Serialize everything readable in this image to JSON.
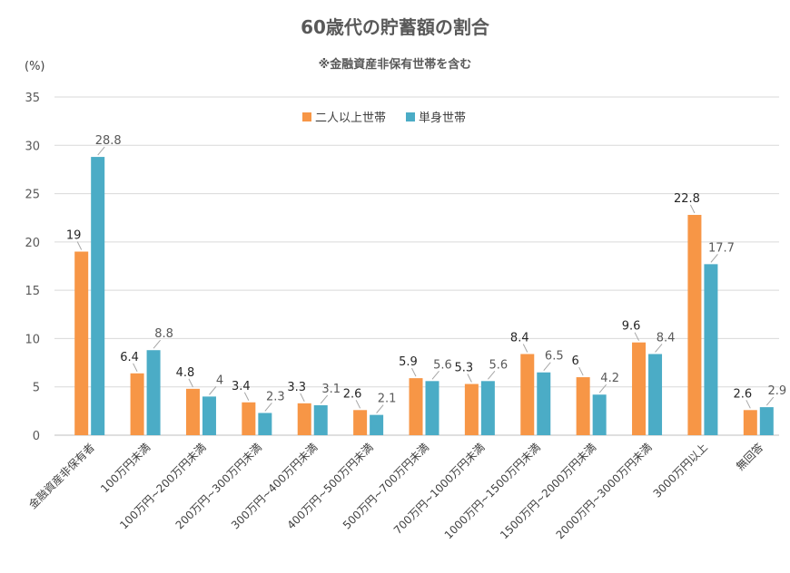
{
  "chart_data": {
    "type": "bar",
    "title": "60歳代の貯蓄額の割合",
    "subtitle": "※金融資産非保有世帯を含む",
    "ylabel": "(%)",
    "ylim": [
      0,
      35
    ],
    "yticks": [
      0,
      5,
      10,
      15,
      20,
      25,
      30,
      35
    ],
    "grid": true,
    "legend_position": "top-center",
    "categories": [
      "金融資産非保有者",
      "100万円未満",
      "100万円~200万円未満",
      "200万円~300万円未満",
      "300万円~400万円未満",
      "400万円~500万円未満",
      "500万円~700万円未満",
      "700万円~1000万円未満",
      "1000万円~1500万円未満",
      "1500万円~2000万円未満",
      "2000万円~3000万円未満",
      "3000万円以上",
      "無回答"
    ],
    "series": [
      {
        "name": "二人以上世帯",
        "color": "#F79646",
        "values": [
          19,
          6.4,
          4.8,
          3.4,
          3.3,
          2.6,
          5.9,
          5.3,
          8.4,
          6,
          9.6,
          22.8,
          2.6
        ]
      },
      {
        "name": "単身世帯",
        "color": "#4BACC6",
        "values": [
          28.8,
          8.8,
          4,
          2.3,
          3.1,
          2.1,
          5.6,
          5.6,
          6.5,
          4.2,
          8.4,
          17.7,
          2.9
        ]
      }
    ]
  }
}
